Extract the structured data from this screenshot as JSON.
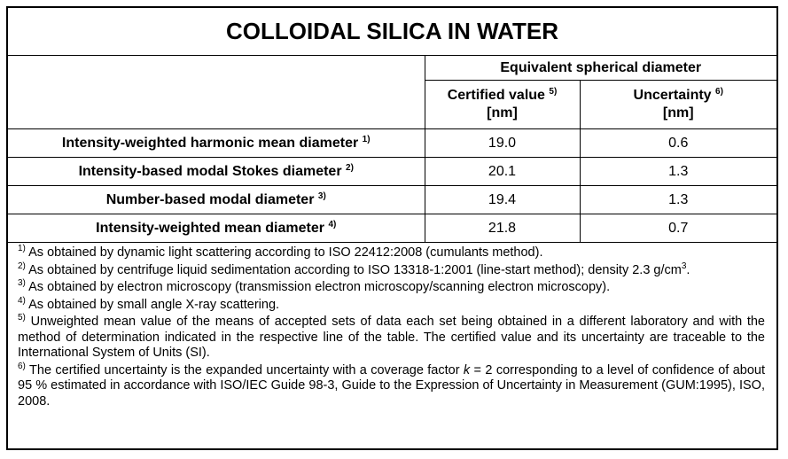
{
  "title": "COLLOIDAL SILICA IN WATER",
  "header": {
    "group": "Equivalent spherical diameter",
    "columns": [
      {
        "label": "Certified value",
        "sup": "5)",
        "unit": "[nm]"
      },
      {
        "label": "Uncertainty",
        "sup": "6)",
        "unit": "[nm]"
      }
    ]
  },
  "rows": [
    {
      "label": "Intensity-weighted harmonic mean diameter",
      "sup": "1)",
      "values": [
        "19.0",
        "0.6"
      ]
    },
    {
      "label": "Intensity-based modal Stokes diameter",
      "sup": "2)",
      "values": [
        "20.1",
        "1.3"
      ]
    },
    {
      "label": "Number-based modal diameter",
      "sup": "3)",
      "values": [
        "19.4",
        "1.3"
      ]
    },
    {
      "label": "Intensity-weighted mean diameter",
      "sup": "4)",
      "values": [
        "21.8",
        "0.7"
      ]
    }
  ],
  "footnotes": [
    {
      "mark": "1)",
      "text": "As obtained by dynamic light scattering according to ISO 22412:2008 (cumulants method)."
    },
    {
      "mark": "2)",
      "text": "As obtained by centrifuge liquid sedimentation according to ISO 13318-1:2001 (line-start method); density 2.3 g/cm",
      "sup": "3",
      "after": "."
    },
    {
      "mark": "3)",
      "text": "As obtained by electron microscopy (transmission electron microscopy/scanning electron microscopy)."
    },
    {
      "mark": "4)",
      "text": "As obtained by small angle X-ray scattering."
    },
    {
      "mark": "5)",
      "text": "Unweighted mean value of the means of accepted sets of data each set being obtained in a different laboratory and with the method of determination indicated in the respective line of the table. The certified value and its uncertainty are traceable to the International System of Units (SI)."
    },
    {
      "mark": "6)",
      "text": "The certified uncertainty is the expanded uncertainty with a coverage factor ",
      "italic": "k",
      "after": " = 2 corresponding to a level of confidence of about 95 % estimated in accordance with ISO/IEC Guide 98-3, Guide to the Expression of Uncertainty in Measurement (GUM:1995), ISO, 2008."
    }
  ]
}
